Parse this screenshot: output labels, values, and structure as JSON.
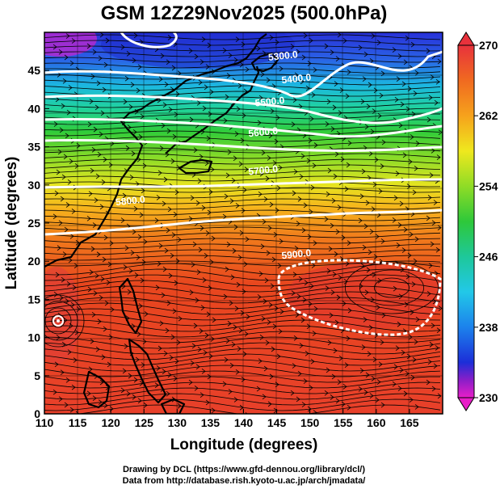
{
  "title": "GSM 12Z29Nov2025 (500.0hPa)",
  "xlabel": "Longitude (degrees)",
  "ylabel": "Latitude  (degrees)",
  "footer": {
    "line1": "Drawing by DCL (https://www.gfd-dennou.org/library/dcl/)",
    "line2": "Data from http://database.rish.kyoto-u.ac.jp/arch/jmadata/"
  },
  "map": {
    "lon_range": [
      110,
      170
    ],
    "lat_range": [
      0,
      50
    ],
    "lon_ticks": [
      "110",
      "115",
      "120",
      "125",
      "130",
      "135",
      "140",
      "145",
      "150",
      "155",
      "160",
      "165"
    ],
    "lat_ticks": [
      "0",
      "5",
      "10",
      "15",
      "20",
      "25",
      "30",
      "35",
      "40",
      "45"
    ],
    "height_contours": [
      {
        "label": "5300.0",
        "lon": 146,
        "lat": 46.5
      },
      {
        "label": "5400.0",
        "lon": 148,
        "lat": 43.5
      },
      {
        "label": "5500.0",
        "lon": 144,
        "lat": 40.5
      },
      {
        "label": "5600.0",
        "lon": 143,
        "lat": 36.5
      },
      {
        "label": "5700.0",
        "lon": 143,
        "lat": 31.5
      },
      {
        "label": "5800.0",
        "lon": 123,
        "lat": 27.5
      },
      {
        "label": "5900.0",
        "lon": 148,
        "lat": 20.5
      }
    ]
  },
  "colorbar": {
    "labels": [
      "270",
      "262",
      "254",
      "246",
      "238",
      "230"
    ],
    "colors": [
      "#e8323c",
      "#f06a20",
      "#f6a21c",
      "#efe81e",
      "#8fdc26",
      "#2ec83a",
      "#1ec89a",
      "#22c8e8",
      "#1c82ec",
      "#1c2ed8",
      "#8a1ec8",
      "#e81ec8"
    ]
  }
}
